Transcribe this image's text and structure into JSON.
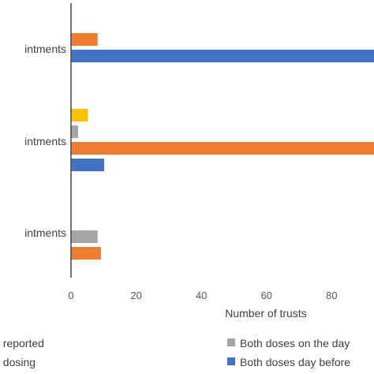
{
  "chart_data": {
    "type": "bar",
    "orientation": "horizontal",
    "categories": [
      "intments",
      "intments",
      "intments"
    ],
    "series": [
      {
        "name": "Both doses day before",
        "color": "#4472C4",
        "values": [
          100,
          10,
          0
        ]
      },
      {
        "name": "",
        "color": "#ED7D31",
        "values": [
          8,
          100,
          9
        ]
      },
      {
        "name": "Both doses on the day",
        "color": "#A5A5A5",
        "values": [
          0,
          2,
          8
        ]
      },
      {
        "name": "",
        "color": "#FFC000",
        "values": [
          0,
          5,
          0
        ]
      }
    ],
    "xlabel": "Number of trusts",
    "xlim": [
      0,
      100
    ],
    "xticks": [
      "0",
      "20",
      "40",
      "60",
      "80"
    ],
    "legend": {
      "position": "bottom",
      "items": [
        {
          "label": "t reported",
          "color": "#ED7D31",
          "show_swatch": false
        },
        {
          "label": "t dosing",
          "color": "#FFC000",
          "show_swatch": false
        },
        {
          "label": "Both doses on the day",
          "color": "#A5A5A5",
          "show_swatch": true
        },
        {
          "label": "Both doses day before",
          "color": "#4472C4",
          "show_swatch": true
        }
      ]
    },
    "grid": false
  }
}
